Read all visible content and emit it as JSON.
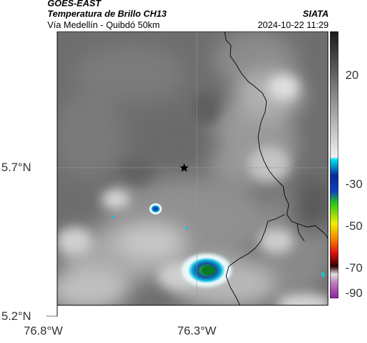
{
  "header": {
    "satellite": "GOES-EAST",
    "product": "Temperatura de Brillo CH13",
    "region": "Vía Medellín - Quibdó 50km",
    "brand": "SIATA",
    "datetime": "2024-10-22 11:29"
  },
  "map": {
    "lat_labels": [
      "5.7°N",
      "5.2°N"
    ],
    "lon_labels": [
      "76.8°W",
      "76.3°W"
    ],
    "marker": "star-icon"
  },
  "colorbar": {
    "ticks": [
      "20",
      "-30",
      "-50",
      "-70",
      "-90"
    ],
    "colors": {
      "gray_top": "#1a1a1a",
      "gray_bottom": "#f2f2f2",
      "cyan": "#00d0e8",
      "blue": "#0a2a9a",
      "green": "#20c020",
      "yellow": "#f0f000",
      "orange": "#f08000",
      "red": "#e01010",
      "dark": "#300000",
      "magenta": "#c040c0"
    }
  }
}
